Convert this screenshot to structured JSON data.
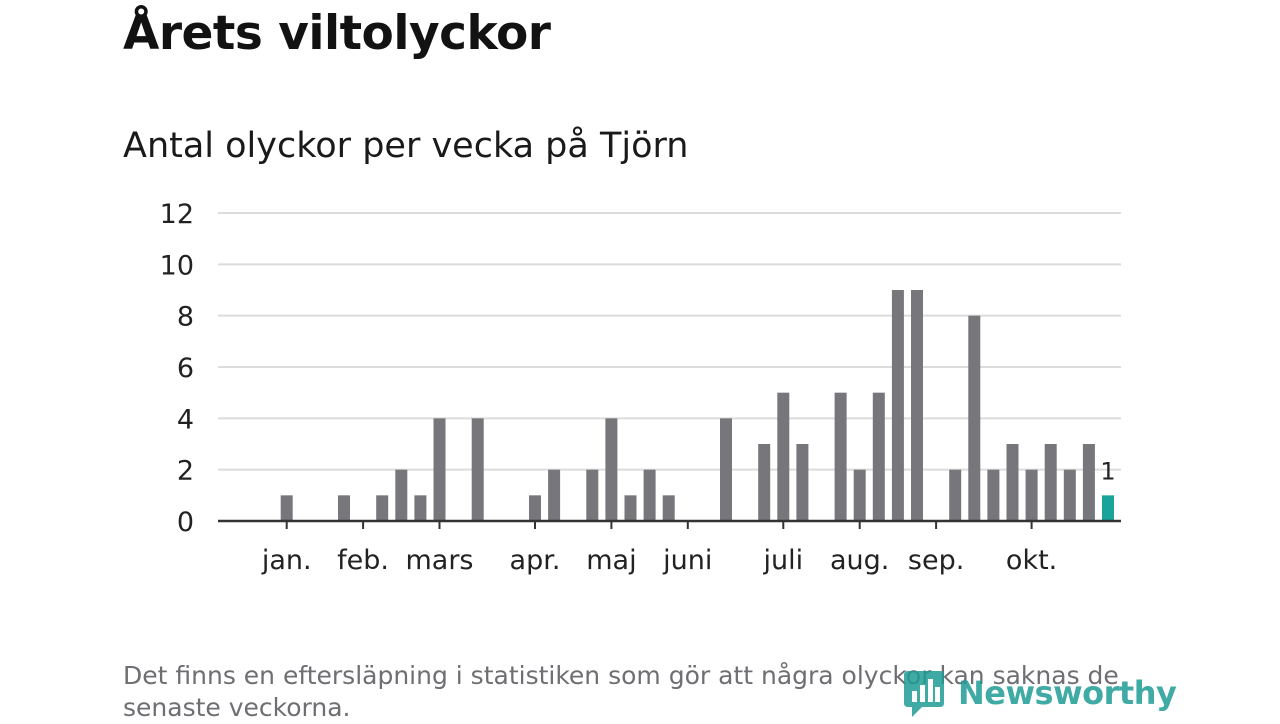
{
  "title": "Årets viltolyckor",
  "subtitle": "Antal olyckor per vecka på Tjörn",
  "footnote": "Det finns en eftersläpning i statistiken som gör att några olyckor kan saknas de senaste veckorna.",
  "logo": {
    "text": "Newsworthy",
    "icon": "newsworthy-logo-icon"
  },
  "colors": {
    "bar": "#76767b",
    "highlight": "#1aa39a",
    "grid": "#dcdcdc",
    "axis": "#333333",
    "logo": "#1f9c96"
  },
  "chart_data": {
    "type": "bar",
    "title": "Antal olyckor per vecka på Tjörn",
    "xlabel": "",
    "ylabel": "",
    "ylim": [
      0,
      12
    ],
    "yticks": [
      0,
      2,
      4,
      6,
      8,
      10,
      12
    ],
    "grid": true,
    "x_unit": "week",
    "weeks": [
      1,
      2,
      3,
      4,
      5,
      6,
      7,
      8,
      9,
      10,
      11,
      12,
      13,
      14,
      15,
      16,
      17,
      18,
      19,
      20,
      21,
      22,
      23,
      24,
      25,
      26,
      27,
      28,
      29,
      30,
      31,
      32,
      33,
      34,
      35,
      36,
      37,
      38,
      39,
      40,
      41,
      42,
      43,
      44,
      45,
      46
    ],
    "values": [
      0,
      0,
      1,
      0,
      0,
      1,
      0,
      1,
      2,
      1,
      4,
      0,
      4,
      0,
      0,
      1,
      2,
      0,
      2,
      4,
      1,
      2,
      1,
      0,
      0,
      4,
      0,
      3,
      5,
      3,
      0,
      5,
      2,
      5,
      9,
      9,
      0,
      2,
      8,
      2,
      3,
      2,
      3,
      2,
      3,
      1
    ],
    "highlight_week": 46,
    "highlight_label": "1",
    "month_labels": [
      {
        "label": "jan.",
        "week": 3
      },
      {
        "label": "feb.",
        "week": 7
      },
      {
        "label": "mars",
        "week": 11
      },
      {
        "label": "apr.",
        "week": 16
      },
      {
        "label": "maj",
        "week": 20
      },
      {
        "label": "juni",
        "week": 24
      },
      {
        "label": "juli",
        "week": 29
      },
      {
        "label": "aug.",
        "week": 33
      },
      {
        "label": "sep.",
        "week": 37
      },
      {
        "label": "okt.",
        "week": 42
      }
    ]
  }
}
